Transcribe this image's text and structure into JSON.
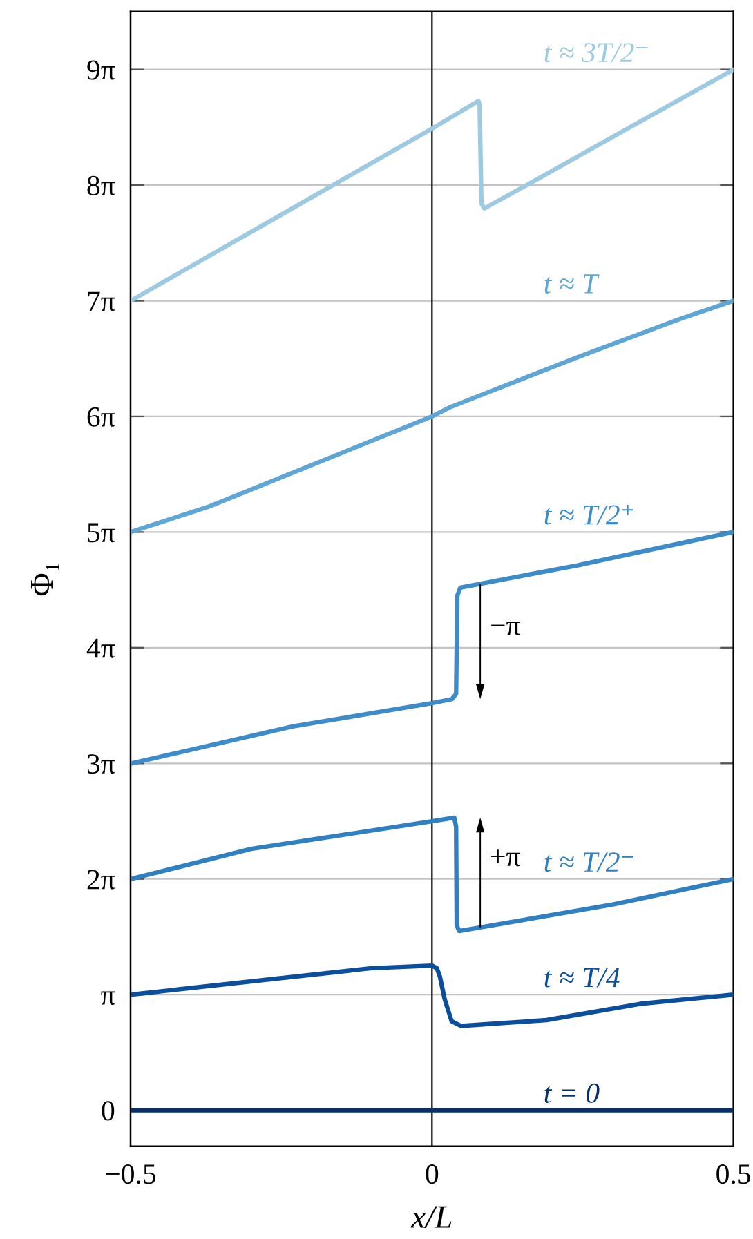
{
  "chart_data": {
    "type": "line",
    "xlabel": "x/L",
    "ylabel": "Φ₁",
    "xlim": [
      -0.5,
      0.5
    ],
    "xticks": [
      -0.5,
      0,
      0.5
    ],
    "ylim": [
      -0.98,
      29.85
    ],
    "yticks": [
      0,
      {
        "value": 3.1416,
        "label": "π"
      },
      {
        "value": 6.2832,
        "label": "2π"
      },
      {
        "value": 9.4248,
        "label": "3π"
      },
      {
        "value": 12.5664,
        "label": "4π"
      },
      {
        "value": 15.708,
        "label": "5π"
      },
      {
        "value": 18.8496,
        "label": "6π"
      },
      {
        "value": 21.9911,
        "label": "7π"
      },
      {
        "value": 25.1327,
        "label": "8π"
      },
      {
        "value": 28.2743,
        "label": "9π"
      }
    ],
    "grid": "y",
    "ref_lines": [
      {
        "axis": "x",
        "value": 0,
        "color": "#000000"
      }
    ],
    "series": [
      {
        "name": "t = 0",
        "color": "#08306b",
        "x": [
          -0.5,
          0.5
        ],
        "values": [
          0,
          0
        ]
      },
      {
        "name": "t ≈ T/4",
        "color": "#0b4f9c",
        "x": [
          -0.5,
          -0.1,
          0,
          0.008,
          0.013,
          0.021,
          0.0325,
          0.048,
          0.19,
          0.345,
          0.5
        ],
        "values": [
          3.14,
          3.86,
          3.93,
          3.86,
          3.64,
          3.02,
          2.42,
          2.29,
          2.45,
          2.89,
          3.14
        ]
      },
      {
        "name": "t ≈ T/2⁻",
        "color": "#2f7fc1",
        "x": [
          -0.5,
          -0.3,
          0,
          0.037,
          0.04,
          0.041,
          0.045,
          0.3,
          0.5
        ],
        "values": [
          6.28,
          7.1,
          7.85,
          7.95,
          7.7,
          5.03,
          4.87,
          5.59,
          6.28
        ]
      },
      {
        "name": "t ≈ T/2⁺",
        "color": "#3d8bc8",
        "x": [
          -0.5,
          -0.23,
          0,
          0.033,
          0.04,
          0.042,
          0.047,
          0.24,
          0.5
        ],
        "values": [
          9.42,
          10.43,
          11.06,
          11.17,
          11.31,
          13.98,
          14.2,
          14.8,
          15.71
        ]
      },
      {
        "name": "t ≈ T",
        "color": "#5fa6d6",
        "x": [
          -0.5,
          -0.37,
          0,
          0.03,
          0.24,
          0.41,
          0.5
        ],
        "values": [
          15.71,
          16.4,
          18.85,
          19.1,
          20.45,
          21.49,
          21.99
        ]
      },
      {
        "name": "t ≈ 3T/2⁻",
        "color": "#9ecae1",
        "x": [
          -0.5,
          -0.25,
          0,
          0.077,
          0.079,
          0.082,
          0.087,
          0.16,
          0.32,
          0.5
        ],
        "values": [
          21.99,
          24.33,
          26.67,
          27.42,
          27.3,
          24.63,
          24.5,
          25.16,
          26.63,
          28.27
        ]
      }
    ],
    "annotations": [
      {
        "text": "−π",
        "x": 0.08,
        "y": 14.3
      },
      {
        "text": "+π",
        "x": 0.08,
        "y": 4.97
      }
    ]
  }
}
